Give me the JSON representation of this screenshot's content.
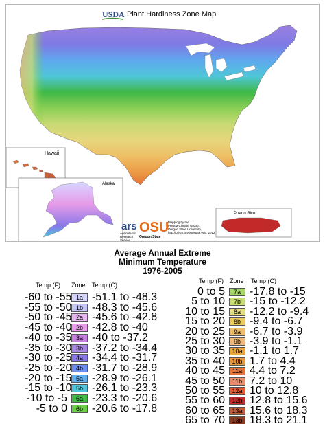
{
  "header": {
    "agency": "USDA",
    "title": "Plant Hardiness Zone Map"
  },
  "insets": {
    "hawaii": "Hawaii",
    "alaska": "Alaska",
    "puerto_rico": "Puerto Rico"
  },
  "credits": {
    "ars_line1": "Agricultural",
    "ars_line2": "Research",
    "ars_line3": "Service",
    "osu_logo": "OSU",
    "osu_name": "Oregon State",
    "text1": "Mapping by the",
    "text2": "PRISM Climate Group,",
    "text3": "Oregon State University,",
    "text4": "http://prism.oregonstate.edu, 2012"
  },
  "legend": {
    "title1": "Average Annual Extreme",
    "title2": "Minimum Temperature",
    "title3": "1976-2005",
    "headers": {
      "temp_f": "Temp (F)",
      "zone": "Zone",
      "temp_c": "Temp (C)"
    },
    "left": [
      {
        "f": "-60 to -55",
        "zone": "1a",
        "c": "-51.1 to -48.3",
        "color": "#d6d6ff"
      },
      {
        "f": "-55 to -50",
        "zone": "1b",
        "c": "-48.3 to -45.6",
        "color": "#c4c4f2"
      },
      {
        "f": "-50 to -45",
        "zone": "2a",
        "c": "-45.6 to -42.8",
        "color": "#e8b8f0"
      },
      {
        "f": "-45 to -40",
        "zone": "2b",
        "c": "-42.8 to -40",
        "color": "#e79be8"
      },
      {
        "f": "-40 to -35",
        "zone": "3a",
        "c": "-40 to -37.2",
        "color": "#c77fe0"
      },
      {
        "f": "-35 to -30",
        "zone": "3b",
        "c": "-37.2 to -34.4",
        "color": "#a886e4"
      },
      {
        "f": "-30 to -25",
        "zone": "4a",
        "c": "-34.4 to -31.7",
        "color": "#8878e8"
      },
      {
        "f": "-25 to -20",
        "zone": "4b",
        "c": "-31.7 to -28.9",
        "color": "#6a8ef2"
      },
      {
        "f": "-20 to -15",
        "zone": "5a",
        "c": "-28.9 to -26.1",
        "color": "#5db0f4"
      },
      {
        "f": "-15 to -10",
        "zone": "5b",
        "c": "-26.1 to -23.3",
        "color": "#4fc8dd"
      },
      {
        "f": "-10 to -5",
        "zone": "6a",
        "c": "-23.3 to -20.6",
        "color": "#3fb846"
      },
      {
        "f": "-5 to 0",
        "zone": "6b",
        "c": "-20.6 to -17.8",
        "color": "#6ccd47"
      }
    ],
    "right": [
      {
        "f": "0 to 5",
        "zone": "7a",
        "c": "-17.8 to -15",
        "color": "#a8d66a"
      },
      {
        "f": "5 to 10",
        "zone": "7b",
        "c": "-15 to -12.2",
        "color": "#c8dc74"
      },
      {
        "f": "10 to 15",
        "zone": "8a",
        "c": "-12.2 to -9.4",
        "color": "#e3de82"
      },
      {
        "f": "15 to 20",
        "zone": "8b",
        "c": "-9.4 to -6.7",
        "color": "#edcc5f"
      },
      {
        "f": "20 to 25",
        "zone": "9a",
        "c": "-6.7 to -3.9",
        "color": "#eebe6e"
      },
      {
        "f": "25 to 30",
        "zone": "9b",
        "c": "-3.9 to -1.1",
        "color": "#f0b778"
      },
      {
        "f": "30 to 35",
        "zone": "10a",
        "c": "-1.1 to 1.7",
        "color": "#eca53e"
      },
      {
        "f": "35 to 40",
        "zone": "10b",
        "c": "1.7 to 4.4",
        "color": "#e9973f"
      },
      {
        "f": "40 to 45",
        "zone": "11a",
        "c": "4.4 to 7.2",
        "color": "#e4743a"
      },
      {
        "f": "45 to 50",
        "zone": "11b",
        "c": "7.2 to 10",
        "color": "#e88f6a"
      },
      {
        "f": "50 to 55",
        "zone": "12a",
        "c": "10 to 12.8",
        "color": "#e15b35"
      },
      {
        "f": "55 to 60",
        "zone": "12b",
        "c": "12.8 to 15.6",
        "color": "#c22a2a"
      },
      {
        "f": "60 to 65",
        "zone": "13a",
        "c": "15.6 to 18.3",
        "color": "#c05a38"
      },
      {
        "f": "65 to 70",
        "zone": "13b",
        "c": "18.3 to 21.1",
        "color": "#8a3a22"
      }
    ]
  }
}
